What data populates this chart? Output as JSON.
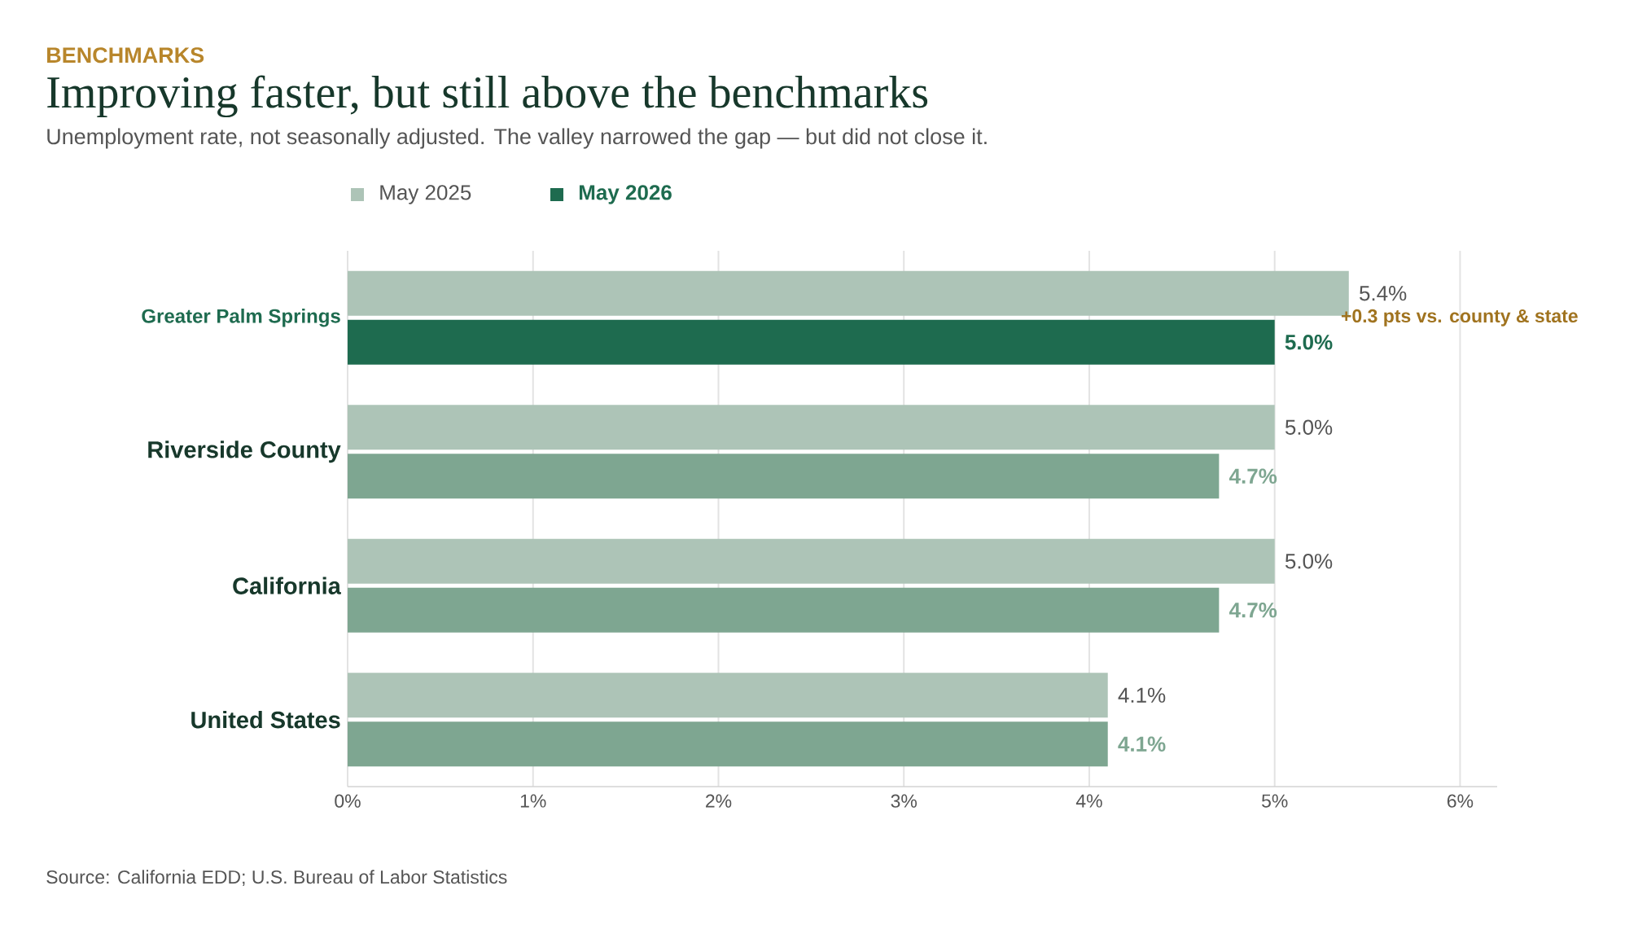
{
  "chart_data": {
    "type": "bar",
    "orientation": "horizontal",
    "title": "Improving faster, but still above the benchmarks",
    "subtitle": "Unemployment rate, not seasonally adjusted. The valley narrowed the gap — but did not close it.",
    "categories": [
      "Greater Palm Springs",
      "Riverside County",
      "California",
      "United States"
    ],
    "series": [
      {
        "name": "May 2025",
        "color": "#adc4b7",
        "values": [
          5.4,
          5.0,
          5.0,
          4.1
        ],
        "value_labels": [
          "5.4%",
          "5.0%",
          "5.0%",
          "4.1%"
        ]
      },
      {
        "name": "May 2026",
        "color": "#1e6b4f",
        "colors": [
          "#1e6b4f",
          "#7ea691",
          "#7ea691",
          "#7ea691"
        ],
        "values": [
          5.0,
          4.7,
          4.7,
          4.1
        ],
        "value_labels": [
          "5.0%",
          "4.7%",
          "4.7%",
          "4.1%"
        ]
      }
    ],
    "xlim": [
      0,
      6.2
    ],
    "xticks": [
      {
        "value": 0,
        "label": "0%"
      },
      {
        "value": 1,
        "label": "1%"
      },
      {
        "value": 2,
        "label": "2%"
      },
      {
        "value": 3,
        "label": "3%"
      },
      {
        "value": 4,
        "label": "4%"
      },
      {
        "value": 5,
        "label": "5%"
      },
      {
        "value": 6,
        "label": "6%"
      }
    ],
    "grid": "x",
    "legend": "top left",
    "annotations": [
      "BENCHMARKS",
      {
        "text": "+0.3 pts vs. county & state",
        "x": 5.4,
        "y": "Greater Palm Springs"
      },
      "Source: California EDD; U.S. Bureau of Labor Statistics"
    ]
  }
}
